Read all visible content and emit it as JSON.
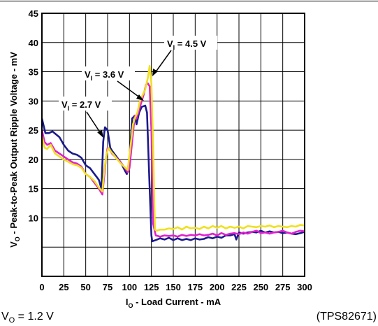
{
  "chart_data": {
    "type": "line",
    "xlabel_main": "I",
    "xlabel_sub": "O",
    "xlabel_rest": " - Load Current - mA",
    "ylabel_main": "V",
    "ylabel_sub": "O",
    "ylabel_rest": " - Peak-to-Peak Output Ripple Voltage - mV",
    "xlim": [
      0,
      300
    ],
    "ylim": [
      0,
      45
    ],
    "x_ticks": [
      "0",
      "25",
      "50",
      "75",
      "100",
      "125",
      "150",
      "175",
      "200",
      "225",
      "250",
      "275",
      "300"
    ],
    "y_ticks": [
      "10",
      "15",
      "20",
      "25",
      "30",
      "35",
      "40",
      "45"
    ],
    "grid": true,
    "series": [
      {
        "name": "VI = 2.7 V",
        "label_main": "V",
        "label_sub": "I",
        "label_rest": " = 2.7 V",
        "color": "#1a1a8c",
        "points": [
          [
            0,
            27
          ],
          [
            4,
            24.5
          ],
          [
            8,
            24.5
          ],
          [
            12,
            24.8
          ],
          [
            16,
            24.3
          ],
          [
            20,
            23.8
          ],
          [
            25,
            22.5
          ],
          [
            30,
            21.5
          ],
          [
            35,
            21
          ],
          [
            40,
            20.8
          ],
          [
            45,
            20.3
          ],
          [
            50,
            19
          ],
          [
            55,
            18.5
          ],
          [
            60,
            17.5
          ],
          [
            65,
            16.5
          ],
          [
            68,
            15
          ],
          [
            70,
            23
          ],
          [
            72,
            25.5
          ],
          [
            75,
            25
          ],
          [
            78,
            22
          ],
          [
            80,
            21.5
          ],
          [
            85,
            20.5
          ],
          [
            90,
            19.5
          ],
          [
            95,
            18
          ],
          [
            97,
            17.5
          ],
          [
            100,
            20
          ],
          [
            103,
            27
          ],
          [
            106,
            27.5
          ],
          [
            108,
            26
          ],
          [
            111,
            28
          ],
          [
            114,
            29
          ],
          [
            118,
            29.2
          ],
          [
            120,
            28
          ],
          [
            123,
            15
          ],
          [
            125,
            7
          ],
          [
            126,
            6
          ],
          [
            130,
            6.2
          ],
          [
            135,
            6.5
          ],
          [
            140,
            6.3
          ],
          [
            145,
            6.6
          ],
          [
            150,
            6.2
          ],
          [
            155,
            6.5
          ],
          [
            160,
            6.2
          ],
          [
            165,
            6.4
          ],
          [
            170,
            6.2
          ],
          [
            175,
            6.5
          ],
          [
            180,
            6.3
          ],
          [
            185,
            6.4
          ],
          [
            190,
            6.7
          ],
          [
            195,
            6.5
          ],
          [
            200,
            6.8
          ],
          [
            205,
            6.6
          ],
          [
            210,
            7
          ],
          [
            215,
            7
          ],
          [
            220,
            7.2
          ],
          [
            222,
            6.3
          ],
          [
            225,
            7.5
          ],
          [
            230,
            7.3
          ],
          [
            235,
            7.5
          ],
          [
            240,
            7.6
          ],
          [
            245,
            7.5
          ],
          [
            250,
            7.8
          ],
          [
            255,
            7.5
          ],
          [
            260,
            7.7
          ],
          [
            265,
            7.5
          ],
          [
            270,
            7.6
          ],
          [
            275,
            7.4
          ],
          [
            280,
            7.5
          ],
          [
            285,
            7.3
          ],
          [
            290,
            7.2
          ],
          [
            295,
            7.4
          ],
          [
            300,
            7.6
          ]
        ]
      },
      {
        "name": "VI = 3.6 V",
        "label_main": "V",
        "label_sub": "I",
        "label_rest": " = 3.6 V",
        "color": "#e020d0",
        "points": [
          [
            0,
            25
          ],
          [
            3,
            23
          ],
          [
            6,
            22.5
          ],
          [
            10,
            22.8
          ],
          [
            15,
            21.5
          ],
          [
            20,
            21
          ],
          [
            25,
            20.5
          ],
          [
            30,
            20
          ],
          [
            35,
            19.5
          ],
          [
            40,
            19.3
          ],
          [
            45,
            18.8
          ],
          [
            50,
            17.5
          ],
          [
            55,
            17
          ],
          [
            60,
            16
          ],
          [
            65,
            15
          ],
          [
            69,
            14
          ],
          [
            71,
            17
          ],
          [
            73,
            20
          ],
          [
            75,
            22
          ],
          [
            78,
            21.5
          ],
          [
            80,
            21
          ],
          [
            85,
            20.3
          ],
          [
            90,
            19.5
          ],
          [
            95,
            18.5
          ],
          [
            98,
            17.8
          ],
          [
            100,
            18.5
          ],
          [
            103,
            23
          ],
          [
            106,
            27.5
          ],
          [
            108,
            27
          ],
          [
            110,
            28
          ],
          [
            113,
            29.5
          ],
          [
            116,
            31
          ],
          [
            119,
            32.8
          ],
          [
            121,
            33
          ],
          [
            123,
            32.5
          ],
          [
            125,
            25
          ],
          [
            127,
            9
          ],
          [
            130,
            7
          ],
          [
            135,
            6.8
          ],
          [
            140,
            7
          ],
          [
            145,
            6.9
          ],
          [
            150,
            7
          ],
          [
            155,
            6.8
          ],
          [
            160,
            7.1
          ],
          [
            165,
            6.9
          ],
          [
            170,
            7.1
          ],
          [
            175,
            7
          ],
          [
            180,
            7.2
          ],
          [
            185,
            7
          ],
          [
            190,
            7.1
          ],
          [
            195,
            7.3
          ],
          [
            200,
            7
          ],
          [
            205,
            7.4
          ],
          [
            210,
            7.1
          ],
          [
            215,
            7.3
          ],
          [
            220,
            7.4
          ],
          [
            225,
            7.2
          ],
          [
            230,
            7.5
          ],
          [
            235,
            7.3
          ],
          [
            240,
            7.6
          ],
          [
            245,
            7.8
          ],
          [
            250,
            7.4
          ],
          [
            255,
            7.5
          ],
          [
            260,
            7.3
          ],
          [
            265,
            7.5
          ],
          [
            270,
            7.6
          ],
          [
            275,
            7.8
          ],
          [
            280,
            7.5
          ],
          [
            285,
            7.3
          ],
          [
            290,
            7.6
          ],
          [
            295,
            7.8
          ],
          [
            300,
            7.7
          ]
        ]
      },
      {
        "name": "VI = 4.5 V",
        "label_main": "V",
        "label_sub": "I",
        "label_rest": " = 4.5 V",
        "color": "#f0e020",
        "points": [
          [
            0,
            24
          ],
          [
            3,
            22
          ],
          [
            6,
            21.8
          ],
          [
            10,
            22.5
          ],
          [
            15,
            21
          ],
          [
            20,
            20.5
          ],
          [
            25,
            20
          ],
          [
            30,
            19.6
          ],
          [
            35,
            19.2
          ],
          [
            40,
            19
          ],
          [
            45,
            18.6
          ],
          [
            50,
            17.5
          ],
          [
            55,
            17
          ],
          [
            60,
            16.3
          ],
          [
            65,
            15.2
          ],
          [
            69,
            14.5
          ],
          [
            71,
            18
          ],
          [
            74,
            21
          ],
          [
            76,
            22
          ],
          [
            79,
            21.3
          ],
          [
            82,
            20.8
          ],
          [
            85,
            20.2
          ],
          [
            90,
            19.3
          ],
          [
            95,
            18.6
          ],
          [
            98,
            18.2
          ],
          [
            101,
            22
          ],
          [
            104,
            26
          ],
          [
            106,
            27
          ],
          [
            109,
            28
          ],
          [
            112,
            30
          ],
          [
            115,
            31
          ],
          [
            118,
            32
          ],
          [
            121,
            34
          ],
          [
            123,
            36
          ],
          [
            125,
            33
          ],
          [
            127,
            22
          ],
          [
            129,
            8
          ],
          [
            131,
            7.8
          ],
          [
            135,
            8
          ],
          [
            140,
            8
          ],
          [
            145,
            8.2
          ],
          [
            150,
            8.1
          ],
          [
            155,
            8.4
          ],
          [
            160,
            8
          ],
          [
            165,
            8.5
          ],
          [
            170,
            8.2
          ],
          [
            175,
            8.3
          ],
          [
            180,
            8.1
          ],
          [
            185,
            8.5
          ],
          [
            190,
            8.2
          ],
          [
            195,
            8.6
          ],
          [
            200,
            8.3
          ],
          [
            205,
            8.6
          ],
          [
            210,
            8.2
          ],
          [
            215,
            8.5
          ],
          [
            220,
            8.3
          ],
          [
            225,
            8.5
          ],
          [
            230,
            8.2
          ],
          [
            235,
            8.6
          ],
          [
            240,
            8.5
          ],
          [
            245,
            8.4
          ],
          [
            250,
            8.6
          ],
          [
            255,
            8.5
          ],
          [
            260,
            8.7
          ],
          [
            265,
            8.4
          ],
          [
            270,
            8.6
          ],
          [
            275,
            8.5
          ],
          [
            280,
            8.4
          ],
          [
            285,
            8.6
          ],
          [
            290,
            8.5
          ],
          [
            295,
            8.8
          ],
          [
            300,
            8.7
          ]
        ]
      }
    ]
  },
  "footer": {
    "left_main": "V",
    "left_sub": "O",
    "left_rest": " = 1.2 V",
    "right": "(TPS82671)"
  }
}
